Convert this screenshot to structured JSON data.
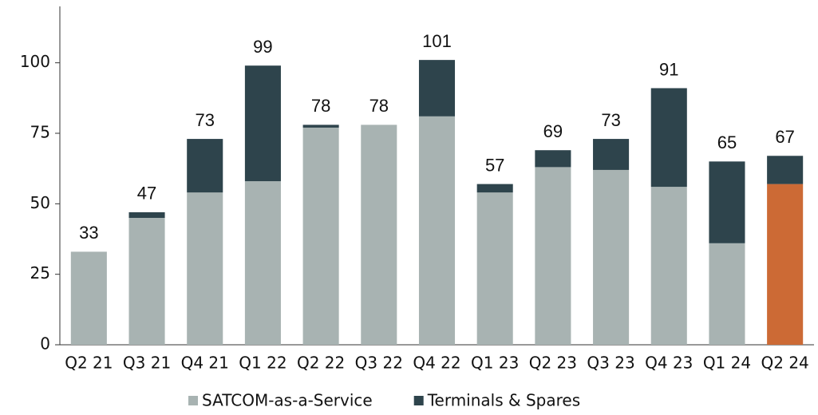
{
  "chart_data": {
    "type": "stacked_bar",
    "categories": [
      "Q2 21",
      "Q3 21",
      "Q4 21",
      "Q1 22",
      "Q2 22",
      "Q3 22",
      "Q4 22",
      "Q1 23",
      "Q2 23",
      "Q3 23",
      "Q4 23",
      "Q1 24",
      "Q2 24"
    ],
    "series": [
      {
        "name": "SATCOM-as-a-Service",
        "color": "#a8b3b2",
        "values": [
          33,
          45,
          54,
          58,
          77,
          78,
          81,
          54,
          63,
          62,
          56,
          36,
          57
        ],
        "colors": [
          "#a8b3b2",
          "#a8b3b2",
          "#a8b3b2",
          "#a8b3b2",
          "#a8b3b2",
          "#a8b3b2",
          "#a8b3b2",
          "#a8b3b2",
          "#a8b3b2",
          "#a8b3b2",
          "#a8b3b2",
          "#a8b3b2",
          "#cc6a35"
        ]
      },
      {
        "name": "Terminals & Spares",
        "color": "#2e444c",
        "values": [
          0,
          2,
          19,
          41,
          1,
          0,
          20,
          3,
          6,
          11,
          35,
          29,
          10
        ]
      }
    ],
    "totals": [
      33,
      47,
      73,
      99,
      78,
      78,
      101,
      57,
      69,
      73,
      91,
      65,
      67
    ],
    "ylim": [
      0,
      120
    ],
    "yticks": [
      0,
      25,
      50,
      75,
      100
    ],
    "grid": false,
    "legend": "bottom"
  }
}
